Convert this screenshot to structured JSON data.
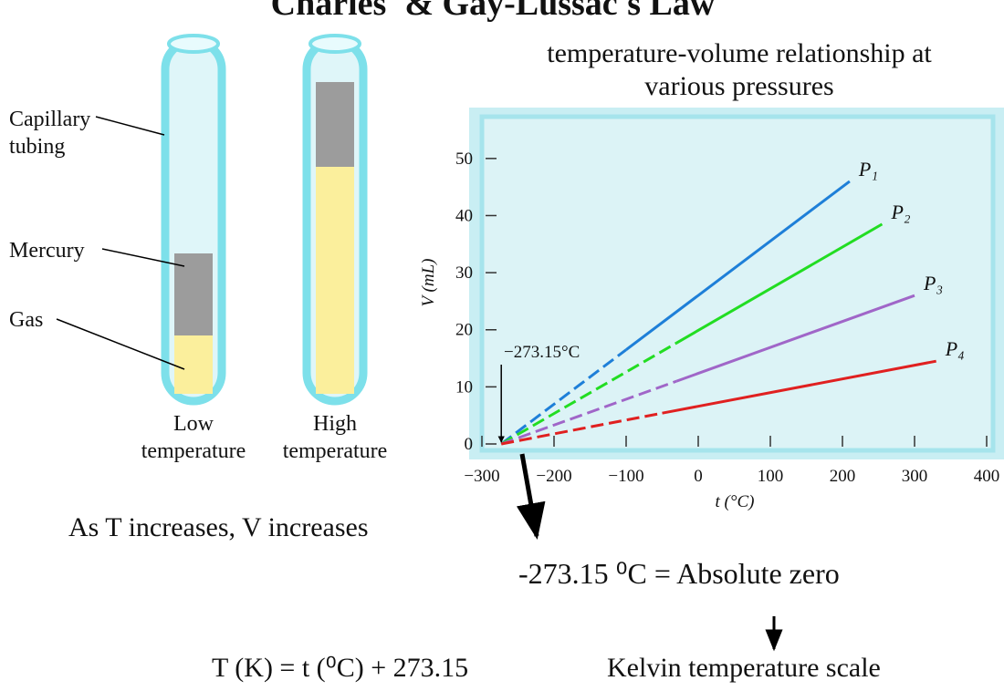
{
  "title": "Charles' & Gay-Lussac's Law",
  "diagram": {
    "capillary": [
      "Capillary",
      "tubing"
    ],
    "mercury": "Mercury",
    "gas": "Gas",
    "low": [
      "Low",
      "temperature"
    ],
    "high": [
      "High",
      "temperature"
    ]
  },
  "chart_data": {
    "type": "line",
    "subtitle": [
      "temperature-volume relationship at",
      "various pressures"
    ],
    "x_label": "t (°C)",
    "y_label": "V (mL)",
    "annotation": "−273.15°C",
    "xlim": [
      -300,
      400
    ],
    "xticks": [
      {
        "value": -300,
        "label": "−300"
      },
      {
        "value": -200,
        "label": "−200"
      },
      {
        "value": -100,
        "label": "−100"
      },
      0,
      100,
      200,
      300,
      400
    ],
    "ylim": [
      0,
      57
    ],
    "yticks": [
      0,
      10,
      20,
      30,
      40,
      50
    ],
    "series": [
      {
        "name": "P₁",
        "color": "#1e7fd8",
        "x": [
          -273.15,
          -100,
          210
        ],
        "values": [
          0,
          16.5,
          46
        ],
        "line_style": [
          "dashed",
          "solid"
        ]
      },
      {
        "name": "P₂",
        "color": "#22dd22",
        "x": [
          -273.15,
          -30,
          255
        ],
        "values": [
          0,
          17.7,
          38.5
        ],
        "line_style": [
          "dashed",
          "solid"
        ]
      },
      {
        "name": "P₃",
        "color": "#a066c8",
        "x": [
          -273.15,
          -30,
          300
        ],
        "values": [
          0,
          11,
          26
        ],
        "line_style": [
          "dashed",
          "solid"
        ]
      },
      {
        "name": "P₄",
        "color": "#e02020",
        "x": [
          -273.15,
          -50,
          330
        ],
        "values": [
          0,
          5.4,
          14.5
        ],
        "line_style": [
          "dashed",
          "solid"
        ]
      }
    ]
  },
  "notes": {
    "trend": "As T increases, V increases",
    "absolute_zero": "-273.15 ⁰C = Absolute zero",
    "formula": "T (K) = t (⁰C) + 273.15",
    "kelvin": "Kelvin temperature scale"
  }
}
